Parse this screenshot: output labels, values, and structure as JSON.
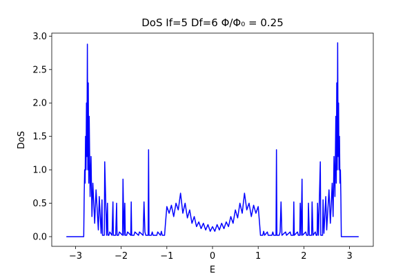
{
  "chart_data": {
    "type": "line",
    "title": "DoS If=5 Df=6 Φ/Φ₀ = 0.25",
    "xlabel": "E",
    "ylabel": "DoS",
    "xlim": [
      -3.52,
      3.52
    ],
    "ylim": [
      -0.145,
      3.045
    ],
    "xticks": [
      {
        "value": -3,
        "label": "−3"
      },
      {
        "value": -2,
        "label": "−2"
      },
      {
        "value": -1,
        "label": "−1"
      },
      0,
      1,
      2,
      3
    ],
    "yticks": [
      {
        "value": 0,
        "label": "0.0"
      },
      0.5,
      {
        "value": 1,
        "label": "1.0"
      },
      1.5,
      {
        "value": 2,
        "label": "2.0"
      },
      2.5,
      {
        "value": 3,
        "label": "3.0"
      }
    ],
    "series": [
      {
        "color": "#0000ff",
        "x": [
          -3.2,
          -2.82,
          -2.81,
          -2.8,
          -2.79,
          -2.78,
          -2.77,
          -2.76,
          -2.75,
          -2.74,
          -2.73,
          -2.72,
          -2.71,
          -2.7,
          -2.68,
          -2.66,
          -2.64,
          -2.62,
          -2.58,
          -2.55,
          -2.5,
          -2.48,
          -2.44,
          -2.42,
          -2.41,
          -2.37,
          -2.36,
          -2.32,
          -2.3,
          -2.29,
          -2.27,
          -2.25,
          -2.2,
          -2.18,
          -2.17,
          -2.12,
          -2.1,
          -2.09,
          -2.06,
          -2.04,
          -1.97,
          -1.96,
          -1.94,
          -1.92,
          -1.91,
          -1.88,
          -1.86,
          -1.79,
          -1.78,
          -1.77,
          -1.72,
          -1.7,
          -1.62,
          -1.6,
          -1.52,
          -1.5,
          -1.48,
          -1.46,
          -1.41,
          -1.4,
          -1.39,
          -1.34,
          -1.32,
          -1.3,
          -1.22,
          -1.2,
          -1.14,
          -1.12,
          -1.1,
          -1.05,
          -1.03,
          -1.0,
          -0.95,
          -0.9,
          -0.85,
          -0.8,
          -0.75,
          -0.7,
          -0.65,
          -0.6,
          -0.55,
          -0.5,
          -0.45,
          -0.4,
          -0.35,
          -0.3,
          -0.25,
          -0.2,
          -0.15,
          -0.1,
          -0.05,
          0,
          0.05,
          0.1,
          0.15,
          0.2,
          0.25,
          0.3,
          0.35,
          0.4,
          0.45,
          0.5,
          0.55,
          0.6,
          0.65,
          0.7,
          0.75,
          0.8,
          0.85,
          0.9,
          0.95,
          1.0,
          1.03,
          1.05,
          1.1,
          1.12,
          1.14,
          1.2,
          1.22,
          1.3,
          1.32,
          1.34,
          1.39,
          1.4,
          1.41,
          1.46,
          1.48,
          1.5,
          1.52,
          1.6,
          1.62,
          1.7,
          1.72,
          1.77,
          1.78,
          1.79,
          1.86,
          1.88,
          1.91,
          1.92,
          1.94,
          1.96,
          1.97,
          2.04,
          2.06,
          2.09,
          2.1,
          2.12,
          2.17,
          2.18,
          2.2,
          2.25,
          2.27,
          2.29,
          2.3,
          2.32,
          2.36,
          2.37,
          2.41,
          2.42,
          2.44,
          2.48,
          2.5,
          2.55,
          2.58,
          2.62,
          2.64,
          2.66,
          2.68,
          2.7,
          2.71,
          2.72,
          2.73,
          2.74,
          2.75,
          2.76,
          2.77,
          2.78,
          2.79,
          2.8,
          2.81,
          2.82,
          3.2
        ],
        "values": [
          0,
          0,
          0.6,
          1.0,
          0.8,
          1.5,
          1.0,
          2.0,
          1.2,
          2.88,
          1.0,
          2.3,
          0.8,
          1.8,
          0.6,
          1.2,
          0.3,
          0.8,
          0.2,
          0.7,
          0.1,
          0.6,
          0.05,
          0.55,
          0.02,
          0.02,
          1.12,
          0.02,
          0.5,
          0.02,
          0.02,
          0.07,
          0.02,
          0.52,
          0.02,
          0.02,
          0.5,
          0.02,
          0.02,
          0.07,
          0.02,
          0.86,
          0.02,
          0.5,
          0.02,
          0.02,
          0.07,
          0.02,
          0.52,
          0.02,
          0.02,
          0.07,
          0.02,
          0.07,
          0.02,
          0.52,
          0.07,
          0.02,
          0.02,
          1.3,
          0.02,
          0.02,
          0.07,
          0.02,
          0.02,
          0.07,
          0.02,
          0.08,
          0.02,
          0.02,
          0.2,
          0.45,
          0.35,
          0.47,
          0.3,
          0.5,
          0.4,
          0.65,
          0.35,
          0.5,
          0.28,
          0.4,
          0.2,
          0.3,
          0.15,
          0.22,
          0.12,
          0.2,
          0.1,
          0.18,
          0.08,
          0.15,
          0.08,
          0.18,
          0.1,
          0.2,
          0.12,
          0.22,
          0.15,
          0.3,
          0.2,
          0.4,
          0.28,
          0.5,
          0.35,
          0.65,
          0.4,
          0.5,
          0.3,
          0.47,
          0.35,
          0.45,
          0.2,
          0.02,
          0.02,
          0.08,
          0.02,
          0.07,
          0.02,
          0.02,
          0.07,
          0.02,
          0.02,
          1.3,
          0.02,
          0.02,
          0.07,
          0.52,
          0.02,
          0.07,
          0.02,
          0.07,
          0.02,
          0.02,
          0.52,
          0.02,
          0.07,
          0.02,
          0.02,
          0.5,
          0.02,
          0.86,
          0.02,
          0.07,
          0.02,
          0.02,
          0.5,
          0.02,
          0.02,
          0.52,
          0.02,
          0.07,
          0.02,
          0.02,
          0.5,
          0.02,
          1.12,
          0.02,
          0.02,
          0.55,
          0.05,
          0.6,
          0.1,
          0.7,
          0.2,
          0.8,
          0.3,
          1.2,
          0.6,
          1.8,
          0.8,
          2.3,
          1.0,
          2.9,
          1.2,
          2.0,
          1.0,
          1.5,
          0.8,
          1.0,
          0.6,
          0,
          0
        ]
      }
    ]
  }
}
